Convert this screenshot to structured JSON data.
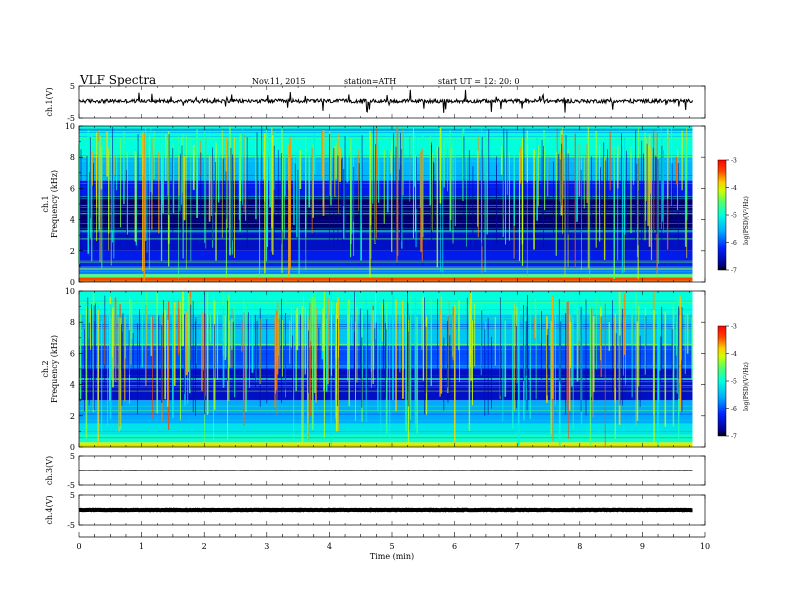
{
  "header": {
    "title": "VLF  Spectra",
    "date": "Nov.11, 2015",
    "station": "station=ATH",
    "start": "start  UT  =    12: 20: 0"
  },
  "chart_data": [
    {
      "type": "line",
      "name": "ch1-waveform",
      "ylabel": "ch.1(V)",
      "ylim": [
        -5,
        5
      ],
      "yticks": [
        "5",
        "-5"
      ],
      "signal": {
        "baseline": 0.3,
        "noise": 0.6,
        "spike_prob": 0.05,
        "spike_amp": 3.4
      }
    },
    {
      "type": "heatmap",
      "name": "ch1-spectrogram",
      "ylabel": "ch.1\nFrequency  (kHz)",
      "ylim": [
        0,
        10
      ],
      "yticks": [
        "0",
        "2",
        "4",
        "6",
        "8",
        "10"
      ],
      "colorbar": {
        "label": "log(PSD)(V²/Hz)",
        "range": [
          -7,
          -3
        ],
        "ticks": [
          "-3",
          "-4",
          "-5",
          "-6",
          "-7"
        ]
      },
      "bands": [
        {
          "f": [
            0,
            0.3
          ],
          "v": -3.4
        },
        {
          "f": [
            0.3,
            0.5
          ],
          "v": -4.6
        },
        {
          "f": [
            0.5,
            1.0
          ],
          "v": -5.8
        },
        {
          "f": [
            1.0,
            2.0
          ],
          "v": -6.3
        },
        {
          "f": [
            2.0,
            3.3
          ],
          "v": -6.5
        },
        {
          "f": [
            3.3,
            5.5
          ],
          "v": -6.85
        },
        {
          "f": [
            5.5,
            6.5
          ],
          "v": -6.3
        },
        {
          "f": [
            6.5,
            8.0
          ],
          "v": -5.5
        },
        {
          "f": [
            8.0,
            10.0
          ],
          "v": -5.0
        }
      ]
    },
    {
      "type": "heatmap",
      "name": "ch2-spectrogram",
      "ylabel": "ch.2\nFrequency  (kHz)",
      "ylim": [
        0,
        10
      ],
      "yticks": [
        "0",
        "2",
        "4",
        "6",
        "8",
        "10"
      ],
      "colorbar": {
        "label": "log(PSD)(V²/Hz)",
        "range": [
          -7,
          -3
        ],
        "ticks": [
          "-3",
          "-4",
          "-5",
          "-6",
          "-7"
        ]
      },
      "bands": [
        {
          "f": [
            0,
            0.3
          ],
          "v": -4.0
        },
        {
          "f": [
            0.3,
            0.8
          ],
          "v": -4.9
        },
        {
          "f": [
            0.8,
            1.5
          ],
          "v": -5.2
        },
        {
          "f": [
            1.5,
            3.0
          ],
          "v": -5.6
        },
        {
          "f": [
            3.0,
            5.0
          ],
          "v": -6.5
        },
        {
          "f": [
            5.0,
            6.5
          ],
          "v": -6.0
        },
        {
          "f": [
            6.5,
            8.5
          ],
          "v": -5.4
        },
        {
          "f": [
            8.5,
            10.0
          ],
          "v": -5.0
        }
      ]
    },
    {
      "type": "line",
      "name": "ch3-waveform",
      "ylabel": "ch.3(V)",
      "ylim": [
        -5,
        5
      ],
      "yticks": [
        "5",
        "-5"
      ],
      "signal": {
        "baseline": 0.0,
        "noise": 0.05,
        "spike_prob": 0.0,
        "spike_amp": 0
      }
    },
    {
      "type": "line",
      "name": "ch4-waveform",
      "ylabel": "ch.4(V)",
      "ylim": [
        -5,
        5
      ],
      "yticks": [
        "5",
        "-5"
      ],
      "signal": {
        "baseline": 0.0,
        "noise": 0.08,
        "spike_prob": 0.0,
        "spike_amp": 0
      }
    }
  ],
  "xaxis": {
    "label": "Time  (min)",
    "range": [
      0,
      10
    ],
    "data_end": 9.8,
    "ticks": [
      "0",
      "1",
      "2",
      "3",
      "4",
      "5",
      "6",
      "7",
      "8",
      "9",
      "10"
    ]
  }
}
